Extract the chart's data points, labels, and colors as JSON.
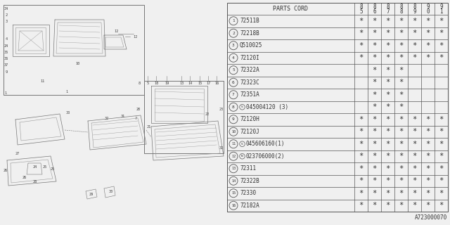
{
  "diagram_id": "A723000070",
  "rows": [
    {
      "num": "1",
      "special": null,
      "part": "72511B",
      "marks": [
        true,
        true,
        true,
        true,
        true,
        true,
        true
      ]
    },
    {
      "num": "2",
      "special": null,
      "part": "72218B",
      "marks": [
        true,
        true,
        true,
        true,
        true,
        true,
        true
      ]
    },
    {
      "num": "3",
      "special": null,
      "part": "Q510025",
      "marks": [
        true,
        true,
        true,
        true,
        true,
        true,
        true
      ]
    },
    {
      "num": "4",
      "special": null,
      "part": "72120I",
      "marks": [
        true,
        true,
        true,
        true,
        true,
        true,
        true
      ]
    },
    {
      "num": "5",
      "special": null,
      "part": "72322A",
      "marks": [
        false,
        true,
        true,
        true,
        false,
        false,
        false
      ]
    },
    {
      "num": "6",
      "special": null,
      "part": "72323C",
      "marks": [
        false,
        true,
        true,
        true,
        false,
        false,
        false
      ]
    },
    {
      "num": "7",
      "special": null,
      "part": "72351A",
      "marks": [
        false,
        true,
        true,
        true,
        false,
        false,
        false
      ]
    },
    {
      "num": "8",
      "special": "S",
      "part": "045004120 (3)",
      "marks": [
        false,
        true,
        true,
        true,
        false,
        false,
        false
      ]
    },
    {
      "num": "9",
      "special": null,
      "part": "72120H",
      "marks": [
        true,
        true,
        true,
        true,
        true,
        true,
        true
      ]
    },
    {
      "num": "10",
      "special": null,
      "part": "72120J",
      "marks": [
        true,
        true,
        true,
        true,
        true,
        true,
        true
      ]
    },
    {
      "num": "11",
      "special": "S",
      "part": "045606160(1)",
      "marks": [
        true,
        true,
        true,
        true,
        true,
        true,
        true
      ]
    },
    {
      "num": "12",
      "special": "N",
      "part": "023706000(2)",
      "marks": [
        true,
        true,
        true,
        true,
        true,
        true,
        true
      ]
    },
    {
      "num": "13",
      "special": null,
      "part": "72311",
      "marks": [
        true,
        true,
        true,
        true,
        true,
        true,
        true
      ]
    },
    {
      "num": "14",
      "special": null,
      "part": "72322B",
      "marks": [
        true,
        true,
        true,
        true,
        true,
        true,
        true
      ]
    },
    {
      "num": "15",
      "special": null,
      "part": "72330",
      "marks": [
        true,
        true,
        true,
        true,
        true,
        true,
        true
      ]
    },
    {
      "num": "16",
      "special": null,
      "part": "72182A",
      "marks": [
        true,
        true,
        true,
        true,
        true,
        true,
        true
      ]
    }
  ],
  "col_years": [
    "85",
    "86",
    "87",
    "88",
    "89",
    "90",
    "91"
  ],
  "bg_color": "#f0f0f0",
  "line_color": "#555555",
  "text_color": "#333333"
}
